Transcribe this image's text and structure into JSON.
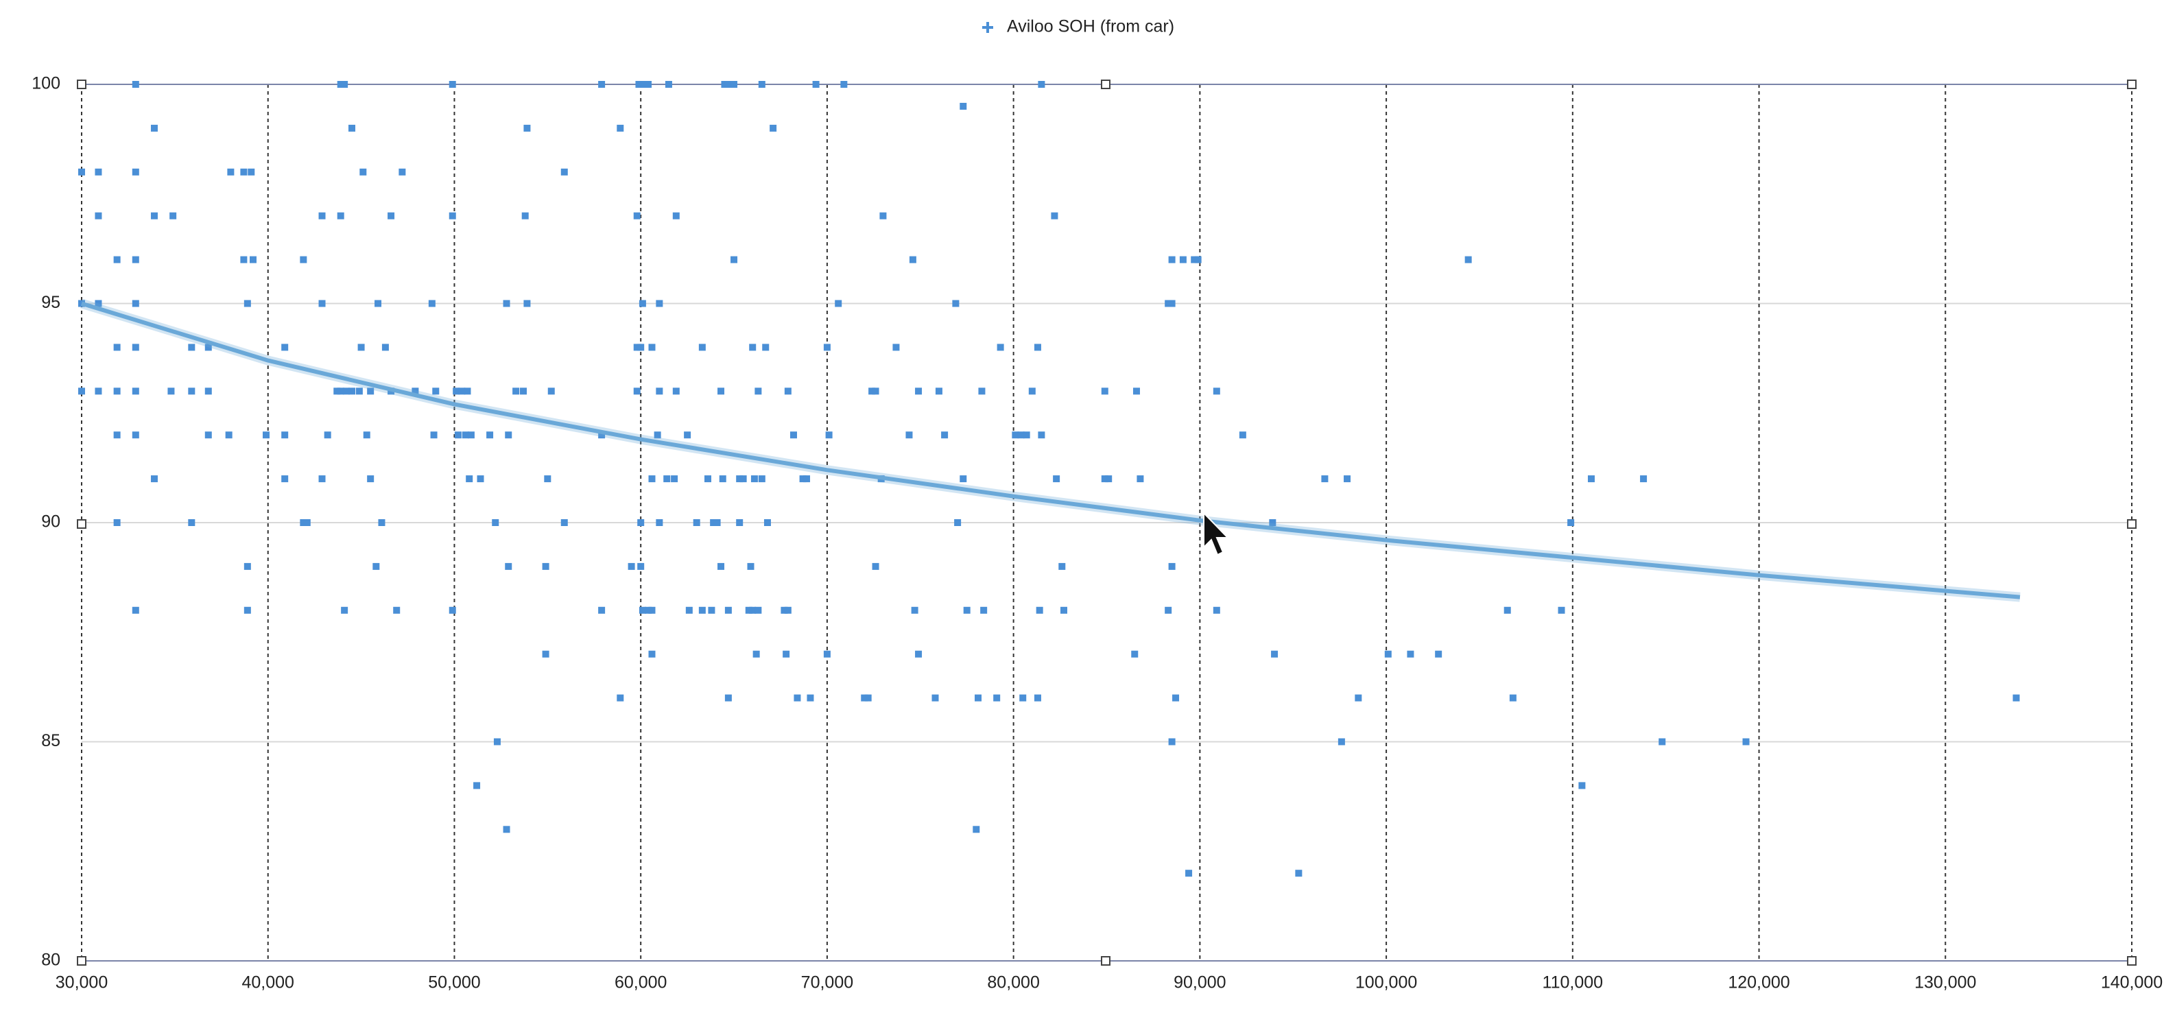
{
  "chart_data": {
    "type": "scatter",
    "xlim": [
      30000,
      140000
    ],
    "xticks": [
      {
        "value": 30000,
        "label": "30,000"
      },
      {
        "value": 40000,
        "label": "40,000"
      },
      {
        "value": 50000,
        "label": "50,000"
      },
      {
        "value": 60000,
        "label": "60,000"
      },
      {
        "value": 70000,
        "label": "70,000"
      },
      {
        "value": 80000,
        "label": "80,000"
      },
      {
        "value": 90000,
        "label": "90,000"
      },
      {
        "value": 100000,
        "label": "100,000"
      },
      {
        "value": 110000,
        "label": "110,000"
      },
      {
        "value": 120000,
        "label": "120,000"
      },
      {
        "value": 130000,
        "label": "130,000"
      },
      {
        "value": 140000,
        "label": "140,000"
      }
    ],
    "ylim": [
      80,
      100
    ],
    "yticks": [
      80,
      85,
      90,
      95,
      100
    ],
    "grid": true,
    "series": [
      {
        "name": "Aviloo SOH (from car)",
        "color": "#4a8fd6",
        "x": [
          32900,
          43900,
          44100,
          49900,
          57900,
          59900,
          60100,
          60400,
          61500,
          64500,
          64700,
          65000,
          66500,
          69400,
          70900,
          81500,
          77300,
          33900,
          44500,
          53900,
          58900,
          67100,
          30000,
          30900,
          32900,
          38000,
          38700,
          39100,
          45100,
          47200,
          55900,
          30900,
          33900,
          34900,
          42900,
          43900,
          46600,
          49900,
          53800,
          59800,
          61900,
          73000,
          82200,
          31900,
          32900,
          38700,
          39200,
          41900,
          65000,
          74600,
          88500,
          89100,
          89700,
          89900,
          104400,
          30000,
          30900,
          32900,
          38900,
          42900,
          45900,
          48800,
          52800,
          53900,
          60100,
          61000,
          70600,
          76900,
          88300,
          88500,
          31900,
          32900,
          35900,
          36800,
          40900,
          45000,
          46300,
          59800,
          60000,
          60600,
          63300,
          66000,
          66700,
          70000,
          73700,
          79300,
          81300,
          30000,
          30900,
          31900,
          32900,
          34800,
          35900,
          36800,
          43700,
          43900,
          44200,
          44500,
          44900,
          45500,
          46600,
          47900,
          49000,
          50100,
          50400,
          50700,
          53300,
          53700,
          55200,
          59800,
          61000,
          61900,
          64300,
          66300,
          67900,
          72400,
          72600,
          74900,
          76000,
          78300,
          81000,
          84900,
          86600,
          90900,
          31900,
          32900,
          36800,
          37900,
          39900,
          40900,
          43200,
          45300,
          48900,
          50200,
          50600,
          50900,
          51900,
          52900,
          57900,
          60900,
          62500,
          68200,
          70100,
          74400,
          76300,
          80100,
          80400,
          80700,
          81500,
          92300,
          33900,
          40900,
          42900,
          45500,
          50800,
          51400,
          55000,
          60600,
          61400,
          61800,
          63600,
          64400,
          65300,
          65500,
          66100,
          66500,
          68700,
          68900,
          72900,
          77300,
          82300,
          84900,
          85100,
          86800,
          96700,
          97900,
          111000,
          113800,
          31900,
          35900,
          41900,
          42100,
          46100,
          52200,
          55900,
          60000,
          61000,
          63000,
          63900,
          64100,
          65300,
          66800,
          77000,
          93900,
          109900,
          38900,
          45800,
          52900,
          54900,
          59500,
          60000,
          64300,
          65900,
          72600,
          82600,
          88500,
          32900,
          38900,
          44100,
          46900,
          49900,
          57900,
          60100,
          60400,
          60600,
          62600,
          63300,
          63800,
          64700,
          65800,
          66000,
          66300,
          67700,
          67900,
          74700,
          77500,
          78400,
          81400,
          82700,
          88300,
          90900,
          106500,
          109400,
          54900,
          60600,
          66200,
          67800,
          70000,
          74900,
          86500,
          94000,
          100100,
          101300,
          102800,
          58900,
          64700,
          68400,
          69100,
          72000,
          72200,
          75800,
          78100,
          79100,
          80500,
          81300,
          88700,
          98500,
          106800,
          133800,
          52300,
          88500,
          97600,
          114800,
          119300,
          51200,
          110500,
          52800,
          78000,
          89400,
          95300
        ],
        "values": [
          100,
          100,
          100,
          100,
          100,
          100,
          100,
          100,
          100,
          100,
          100,
          100,
          100,
          100,
          100,
          100,
          99.5,
          99,
          99,
          99,
          99,
          99,
          98,
          98,
          98,
          98,
          98,
          98,
          98,
          98,
          98,
          97,
          97,
          97,
          97,
          97,
          97,
          97,
          97,
          97,
          97,
          97,
          97,
          96,
          96,
          96,
          96,
          96,
          96,
          96,
          96,
          96,
          96,
          96,
          96,
          95,
          95,
          95,
          95,
          95,
          95,
          95,
          95,
          95,
          95,
          95,
          95,
          95,
          95,
          95,
          94,
          94,
          94,
          94,
          94,
          94,
          94,
          94,
          94,
          94,
          94,
          94,
          94,
          94,
          94,
          94,
          94,
          93,
          93,
          93,
          93,
          93,
          93,
          93,
          93,
          93,
          93,
          93,
          93,
          93,
          93,
          93,
          93,
          93,
          93,
          93,
          93,
          93,
          93,
          93,
          93,
          93,
          93,
          93,
          93,
          93,
          93,
          93,
          93,
          93,
          93,
          93,
          93,
          93,
          92,
          92,
          92,
          92,
          92,
          92,
          92,
          92,
          92,
          92,
          92,
          92,
          92,
          92,
          92,
          92,
          92,
          92,
          92,
          92,
          92,
          92,
          92,
          92,
          92,
          92,
          91,
          91,
          91,
          91,
          91,
          91,
          91,
          91,
          91,
          91,
          91,
          91,
          91,
          91,
          91,
          91,
          91,
          91,
          91,
          91,
          91,
          91,
          91,
          91,
          91,
          91,
          91,
          91,
          90,
          90,
          90,
          90,
          90,
          90,
          90,
          90,
          90,
          90,
          90,
          90,
          90,
          90,
          90,
          90,
          90,
          89,
          89,
          89,
          89,
          89,
          89,
          89,
          89,
          89,
          89,
          89,
          88,
          88,
          88,
          88,
          88,
          88,
          88,
          88,
          88,
          88,
          88,
          88,
          88,
          88,
          88,
          88,
          88,
          88,
          88,
          88,
          88,
          88,
          88,
          88,
          88,
          88,
          88,
          87,
          87,
          87,
          87,
          87,
          87,
          87,
          87,
          87,
          87,
          87,
          86,
          86,
          86,
          86,
          86,
          86,
          86,
          86,
          86,
          86,
          86,
          86,
          86,
          86,
          86,
          85,
          85,
          85,
          85,
          85,
          84,
          84,
          83,
          83,
          82,
          82
        ]
      }
    ],
    "trendline": {
      "color": "#6aa8d8",
      "x": [
        30000,
        40000,
        50000,
        60000,
        70000,
        80000,
        90000,
        100000,
        110000,
        120000,
        134000
      ],
      "values": [
        95,
        93.7,
        92.7,
        91.9,
        91.2,
        90.6,
        90.05,
        89.6,
        89.2,
        88.8,
        88.3
      ]
    }
  }
}
